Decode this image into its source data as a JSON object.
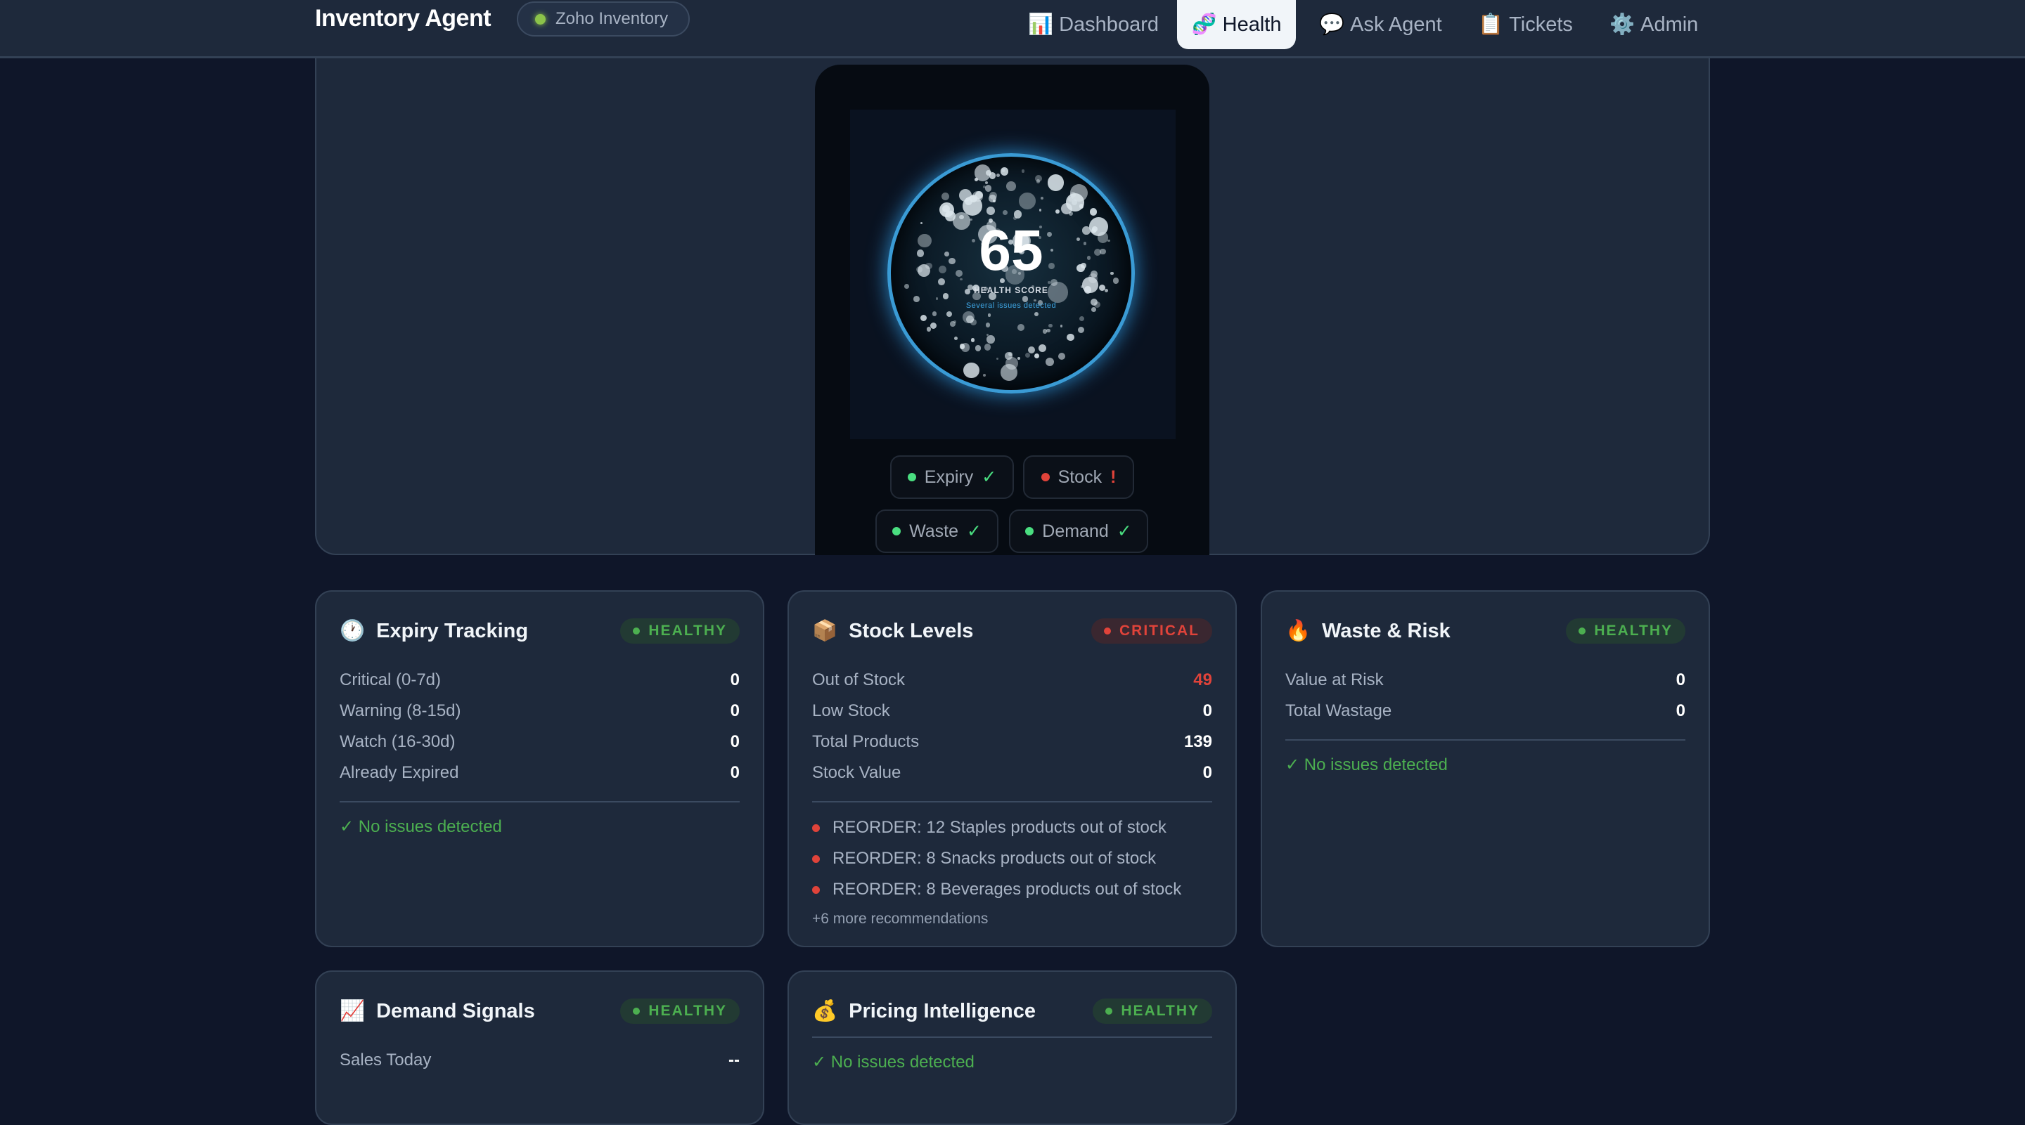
{
  "header": {
    "title": "Inventory Agent",
    "source_badge": "Zoho Inventory",
    "nav": [
      {
        "icon": "📊",
        "label": "Dashboard"
      },
      {
        "icon": "🧬",
        "label": "Health",
        "active": true
      },
      {
        "icon": "💬",
        "label": "Ask Agent"
      },
      {
        "icon": "📋",
        "label": "Tickets"
      },
      {
        "icon": "⚙️",
        "label": "Admin"
      }
    ]
  },
  "health": {
    "score": "65",
    "score_label": "HEALTH SCORE",
    "summary": "Several issues detected",
    "chips": [
      {
        "label": "Expiry",
        "mark": "✓",
        "status": "ok"
      },
      {
        "label": "Stock",
        "mark": "!",
        "status": "bad"
      },
      {
        "label": "Waste",
        "mark": "✓",
        "status": "ok"
      },
      {
        "label": "Demand",
        "mark": "✓",
        "status": "ok"
      }
    ]
  },
  "colors": {
    "ok": "#4caf50",
    "bad": "#e0433a",
    "accent": "#3a9bd5"
  },
  "cards": {
    "expiry": {
      "icon": "🕐",
      "title": "Expiry Tracking",
      "status": "HEALTHY",
      "rows": [
        {
          "label": "Critical (0-7d)",
          "value": "0"
        },
        {
          "label": "Warning (8-15d)",
          "value": "0"
        },
        {
          "label": "Watch (16-30d)",
          "value": "0"
        },
        {
          "label": "Already Expired",
          "value": "0"
        }
      ],
      "note": "✓ No issues detected"
    },
    "stock": {
      "icon": "📦",
      "title": "Stock Levels",
      "status": "CRITICAL",
      "rows": [
        {
          "label": "Out of Stock",
          "value": "49"
        },
        {
          "label": "Low Stock",
          "value": "0"
        },
        {
          "label": "Total Products",
          "value": "139"
        },
        {
          "label": "Stock Value",
          "value": "0"
        }
      ],
      "recommendations": [
        "REORDER: 12 Staples products out of stock",
        "REORDER: 8 Snacks products out of stock",
        "REORDER: 8 Beverages products out of stock"
      ],
      "more": "+6 more recommendations"
    },
    "waste": {
      "icon": "🔥",
      "title": "Waste & Risk",
      "status": "HEALTHY",
      "rows": [
        {
          "label": "Value at Risk",
          "value": "0"
        },
        {
          "label": "Total Wastage",
          "value": "0"
        }
      ],
      "note": "✓ No issues detected"
    },
    "demand": {
      "icon": "📈",
      "title": "Demand Signals",
      "status": "HEALTHY",
      "rows": [
        {
          "label": "Sales Today",
          "value": "--"
        }
      ]
    },
    "pricing": {
      "icon": "💰",
      "title": "Pricing Intelligence",
      "status": "HEALTHY",
      "note": "✓ No issues detected"
    }
  }
}
